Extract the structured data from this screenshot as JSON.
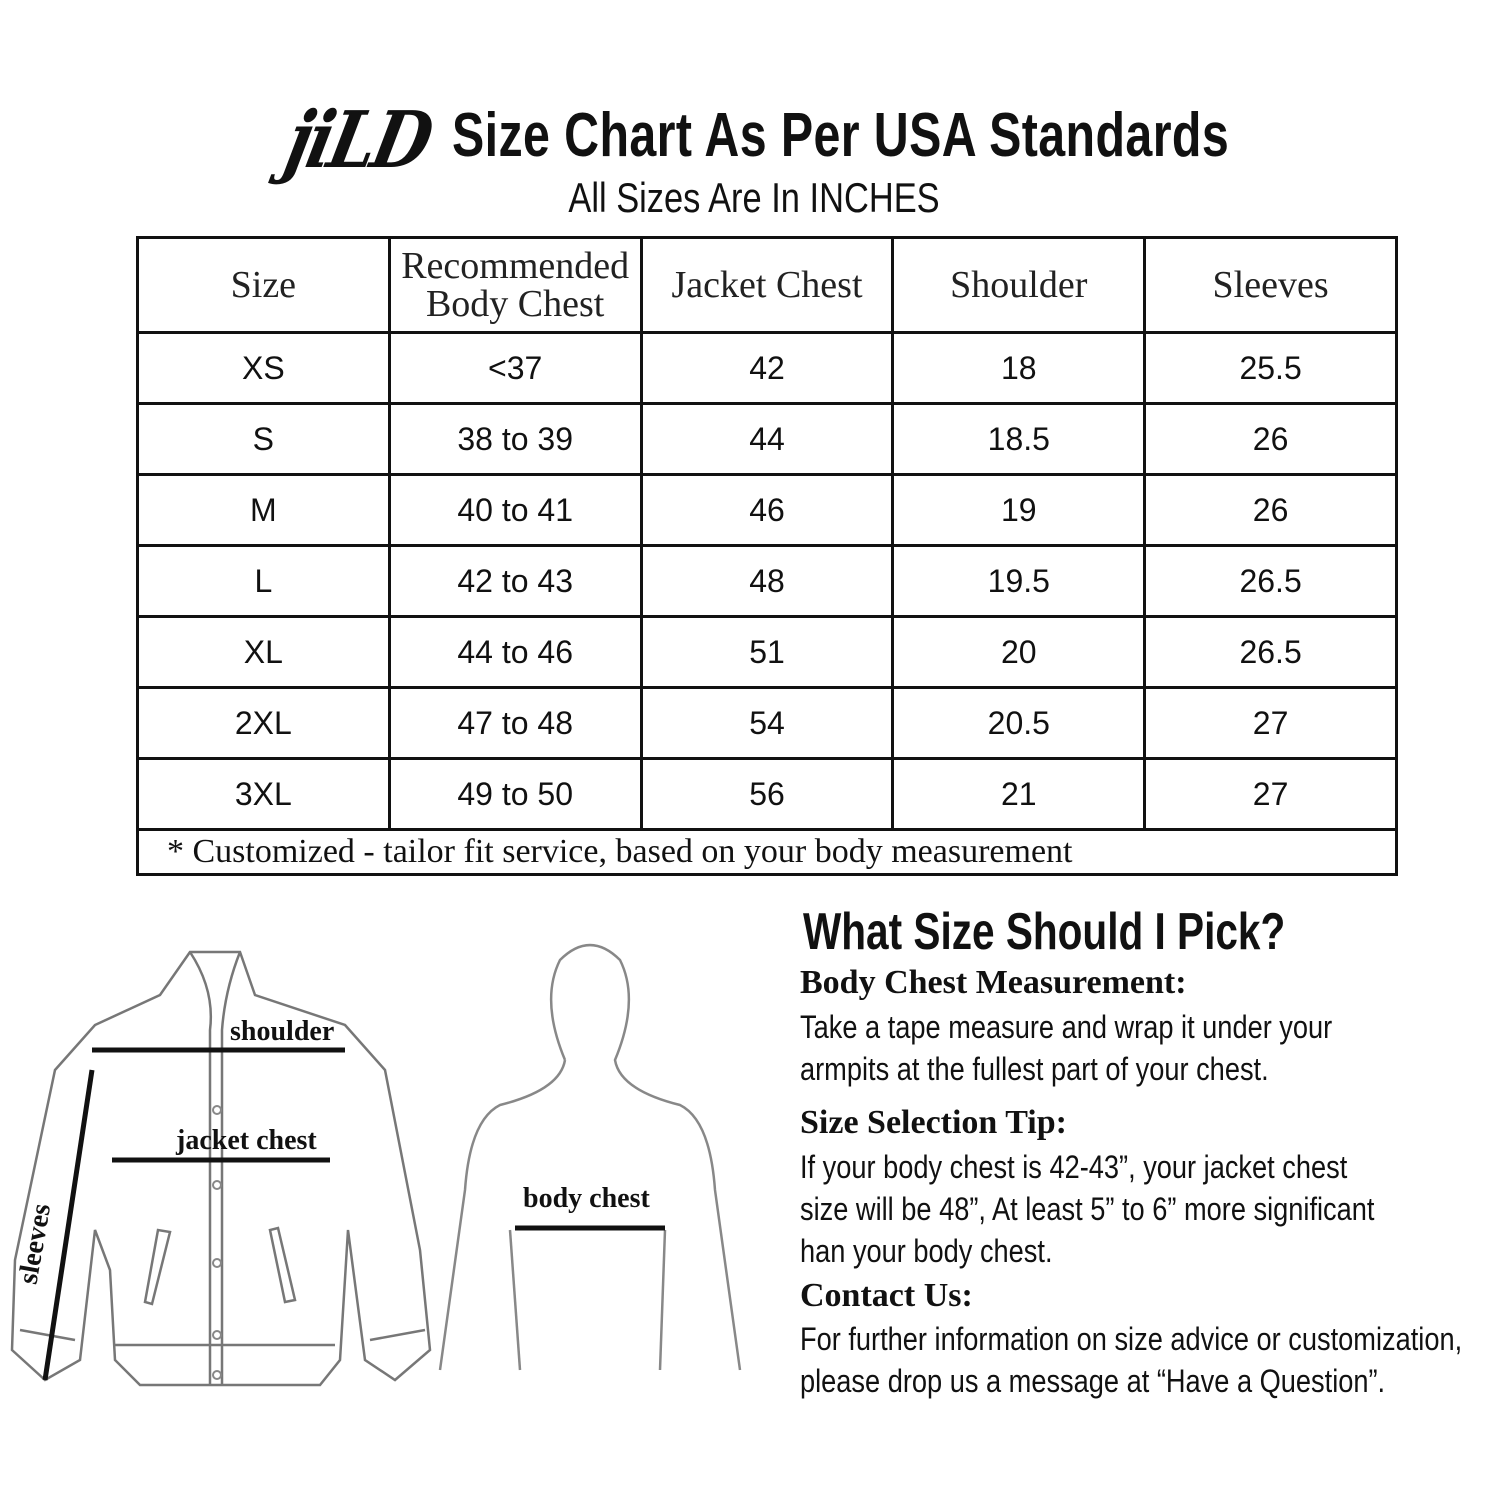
{
  "header": {
    "logo": "jiLD",
    "title": "Size Chart As Per USA Standards",
    "subtitle": "All Sizes Are In INCHES"
  },
  "table": {
    "headers": [
      "Size",
      "Recommended Body Chest",
      "Jacket Chest",
      "Shoulder",
      "Sleeves"
    ],
    "header_lines": {
      "rec1": "Recommended",
      "rec2": "Body Chest"
    },
    "rows": [
      [
        "XS",
        "<37",
        "42",
        "18",
        "25.5"
      ],
      [
        "S",
        "38 to 39",
        "44",
        "18.5",
        "26"
      ],
      [
        "M",
        "40 to 41",
        "46",
        "19",
        "26"
      ],
      [
        "L",
        "42 to 43",
        "48",
        "19.5",
        "26.5"
      ],
      [
        "XL",
        "44 to 46",
        "51",
        "20",
        "26.5"
      ],
      [
        "2XL",
        "47 to 48",
        "54",
        "20.5",
        "27"
      ],
      [
        "3XL",
        "49 to 50",
        "56",
        "21",
        "27"
      ]
    ],
    "footnote": "* Customized - tailor fit service,  based on your body measurement"
  },
  "diagram": {
    "shoulder": "shoulder",
    "jacket_chest": "jacket chest",
    "sleeves": "sleeves",
    "body_chest": "body chest"
  },
  "guide": {
    "title": "What Size Should I Pick?",
    "sections": [
      {
        "heading": "Body Chest Measurement:",
        "lines": [
          "Take a tape measure and wrap it under your",
          "armpits at the fullest part of your chest."
        ]
      },
      {
        "heading": "Size Selection Tip:",
        "lines": [
          "If your body chest is 42-43”, your jacket chest",
          "size will be 48”, At least 5” to 6” more significant",
          "han your body chest."
        ]
      },
      {
        "heading": "Contact Us:",
        "lines": [
          "For further information on size advice or customization,",
          "please drop us a message at “Have a Question”."
        ]
      }
    ]
  }
}
